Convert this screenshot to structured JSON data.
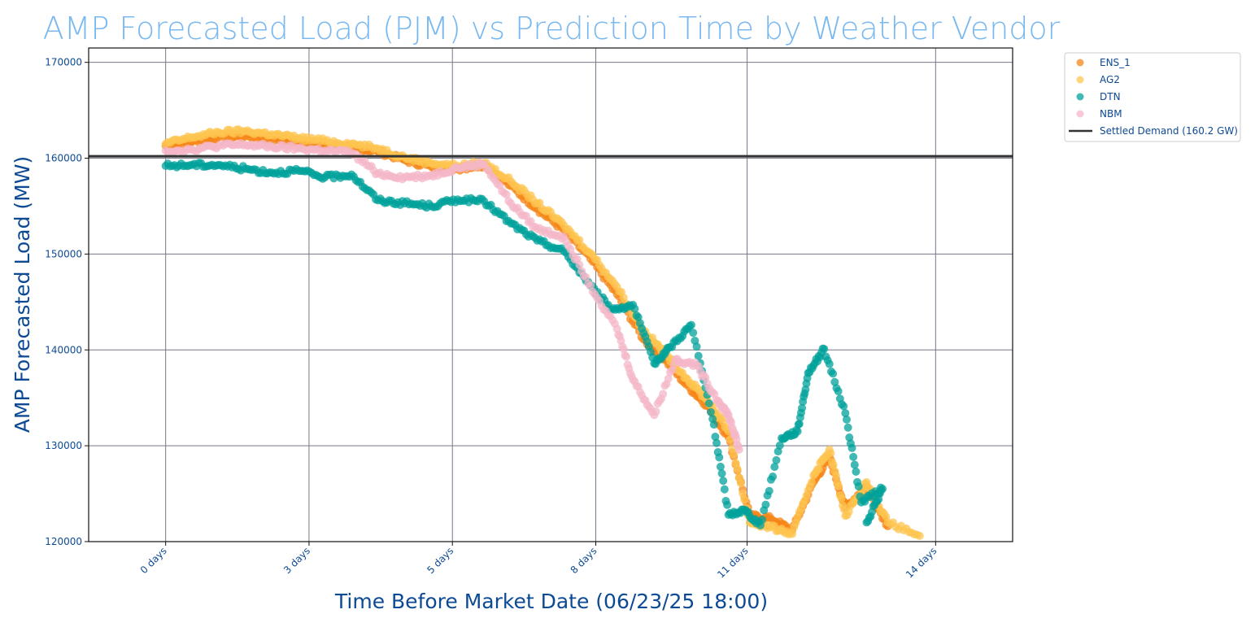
{
  "colors": {
    "title": "#7ab8f0",
    "label": "#0d4a94",
    "grid": "#777788",
    "frame": "#111111"
  },
  "chart_data": {
    "type": "scatter",
    "title": "AMP Forecasted Load (PJM) vs Prediction Time by Weather Vendor",
    "xlabel": "Time Before Market Date (06/23/25 18:00)",
    "ylabel": "AMP Forecasted Load (MW)",
    "xlim": [
      -1.45,
      15.95
    ],
    "ylim": [
      120000,
      171500
    ],
    "x_ticks": [
      0,
      2.7,
      5.4,
      8.1,
      10.95,
      14.5
    ],
    "x_tick_labels": [
      "0 days",
      "3 days",
      "5 days",
      "8 days",
      "11 days",
      "14 days"
    ],
    "y_ticks": [
      120000,
      130000,
      140000,
      150000,
      160000,
      170000
    ],
    "y_tick_labels": [
      "120000",
      "130000",
      "140000",
      "150000",
      "160000",
      "170000"
    ],
    "grid": true,
    "legend_position": "outside-top-right",
    "reference_line": {
      "name": "Settled Demand (160.2 GW)",
      "y": 160200,
      "color": "#333333"
    },
    "series": [
      {
        "name": "ENS_1",
        "color": "#f58518",
        "opacity": 0.75,
        "points": [
          [
            0,
            161300
          ],
          [
            0.5,
            161700
          ],
          [
            1,
            162200
          ],
          [
            1.5,
            162300
          ],
          [
            2,
            162000
          ],
          [
            2.5,
            161600
          ],
          [
            3,
            161300
          ],
          [
            3.5,
            161100
          ],
          [
            4,
            160700
          ],
          [
            4.5,
            159800
          ],
          [
            5,
            159100
          ],
          [
            5.5,
            158900
          ],
          [
            6,
            159300
          ],
          [
            6.5,
            157100
          ],
          [
            7,
            154700
          ],
          [
            7.5,
            152500
          ],
          [
            8,
            149500
          ],
          [
            8.5,
            145800
          ],
          [
            9,
            141100
          ],
          [
            9.4,
            139000
          ],
          [
            9.8,
            136400
          ],
          [
            10.2,
            134200
          ],
          [
            10.6,
            130900
          ],
          [
            11,
            122700
          ],
          [
            11.4,
            122400
          ],
          [
            11.8,
            121200
          ],
          [
            12.2,
            126200
          ],
          [
            12.5,
            128800
          ],
          [
            12.8,
            123500
          ],
          [
            13.2,
            125800
          ],
          [
            13.6,
            121600
          ]
        ]
      },
      {
        "name": "AG2",
        "color": "#fec44f",
        "opacity": 0.75,
        "points": [
          [
            0,
            161500
          ],
          [
            0.5,
            162200
          ],
          [
            1,
            162700
          ],
          [
            1.5,
            162800
          ],
          [
            2,
            162500
          ],
          [
            2.5,
            162100
          ],
          [
            3,
            161800
          ],
          [
            3.5,
            161500
          ],
          [
            4,
            161000
          ],
          [
            4.5,
            160100
          ],
          [
            5,
            159500
          ],
          [
            5.5,
            159200
          ],
          [
            6,
            159500
          ],
          [
            6.5,
            157600
          ],
          [
            7,
            155300
          ],
          [
            7.5,
            153000
          ],
          [
            8,
            150100
          ],
          [
            8.5,
            146600
          ],
          [
            9,
            142000
          ],
          [
            9.4,
            139700
          ],
          [
            9.8,
            137100
          ],
          [
            10.2,
            134800
          ],
          [
            10.6,
            131500
          ],
          [
            11,
            122000
          ],
          [
            11.4,
            121500
          ],
          [
            11.8,
            120800
          ],
          [
            12.2,
            126900
          ],
          [
            12.5,
            129600
          ],
          [
            12.8,
            122700
          ],
          [
            13.2,
            126200
          ],
          [
            13.6,
            122000
          ],
          [
            14.2,
            120600
          ]
        ]
      },
      {
        "name": "DTN",
        "color": "#00a19b",
        "opacity": 0.75,
        "points": [
          [
            0,
            159200
          ],
          [
            0.5,
            159300
          ],
          [
            1,
            159300
          ],
          [
            1.5,
            158900
          ],
          [
            2,
            158500
          ],
          [
            2.5,
            158700
          ],
          [
            3,
            158000
          ],
          [
            3.5,
            158300
          ],
          [
            4,
            155600
          ],
          [
            4.5,
            155300
          ],
          [
            5,
            155000
          ],
          [
            5.5,
            155700
          ],
          [
            6,
            155500
          ],
          [
            6.5,
            153200
          ],
          [
            7,
            151400
          ],
          [
            7.5,
            150300
          ],
          [
            8,
            146700
          ],
          [
            8.4,
            144200
          ],
          [
            8.8,
            144700
          ],
          [
            9.2,
            138600
          ],
          [
            9.5,
            140300
          ],
          [
            9.9,
            142600
          ],
          [
            10.3,
            132800
          ],
          [
            10.6,
            122800
          ],
          [
            10.9,
            123300
          ],
          [
            11.2,
            121700
          ],
          [
            11.6,
            130800
          ],
          [
            11.9,
            131500
          ],
          [
            12.1,
            137600
          ],
          [
            12.4,
            140100
          ],
          [
            12.8,
            133400
          ],
          [
            13.1,
            124100
          ],
          [
            13.5,
            125500
          ],
          [
            13.2,
            122000
          ]
        ]
      },
      {
        "name": "NBM",
        "color": "#f4b7c8",
        "opacity": 0.75,
        "points": [
          [
            0,
            160800
          ],
          [
            0.5,
            160900
          ],
          [
            1,
            161300
          ],
          [
            1.5,
            161400
          ],
          [
            2,
            161200
          ],
          [
            2.5,
            161000
          ],
          [
            3,
            160800
          ],
          [
            3.5,
            160600
          ],
          [
            4,
            158400
          ],
          [
            4.5,
            158000
          ],
          [
            5,
            158200
          ],
          [
            5.5,
            159000
          ],
          [
            6,
            159400
          ],
          [
            6.5,
            155300
          ],
          [
            7,
            152600
          ],
          [
            7.5,
            151800
          ],
          [
            8,
            146700
          ],
          [
            8.5,
            142200
          ],
          [
            8.8,
            136900
          ],
          [
            9.2,
            133200
          ],
          [
            9.6,
            139000
          ],
          [
            10,
            138400
          ],
          [
            10.4,
            134700
          ],
          [
            10.6,
            133200
          ],
          [
            10.8,
            129600
          ]
        ]
      }
    ]
  }
}
